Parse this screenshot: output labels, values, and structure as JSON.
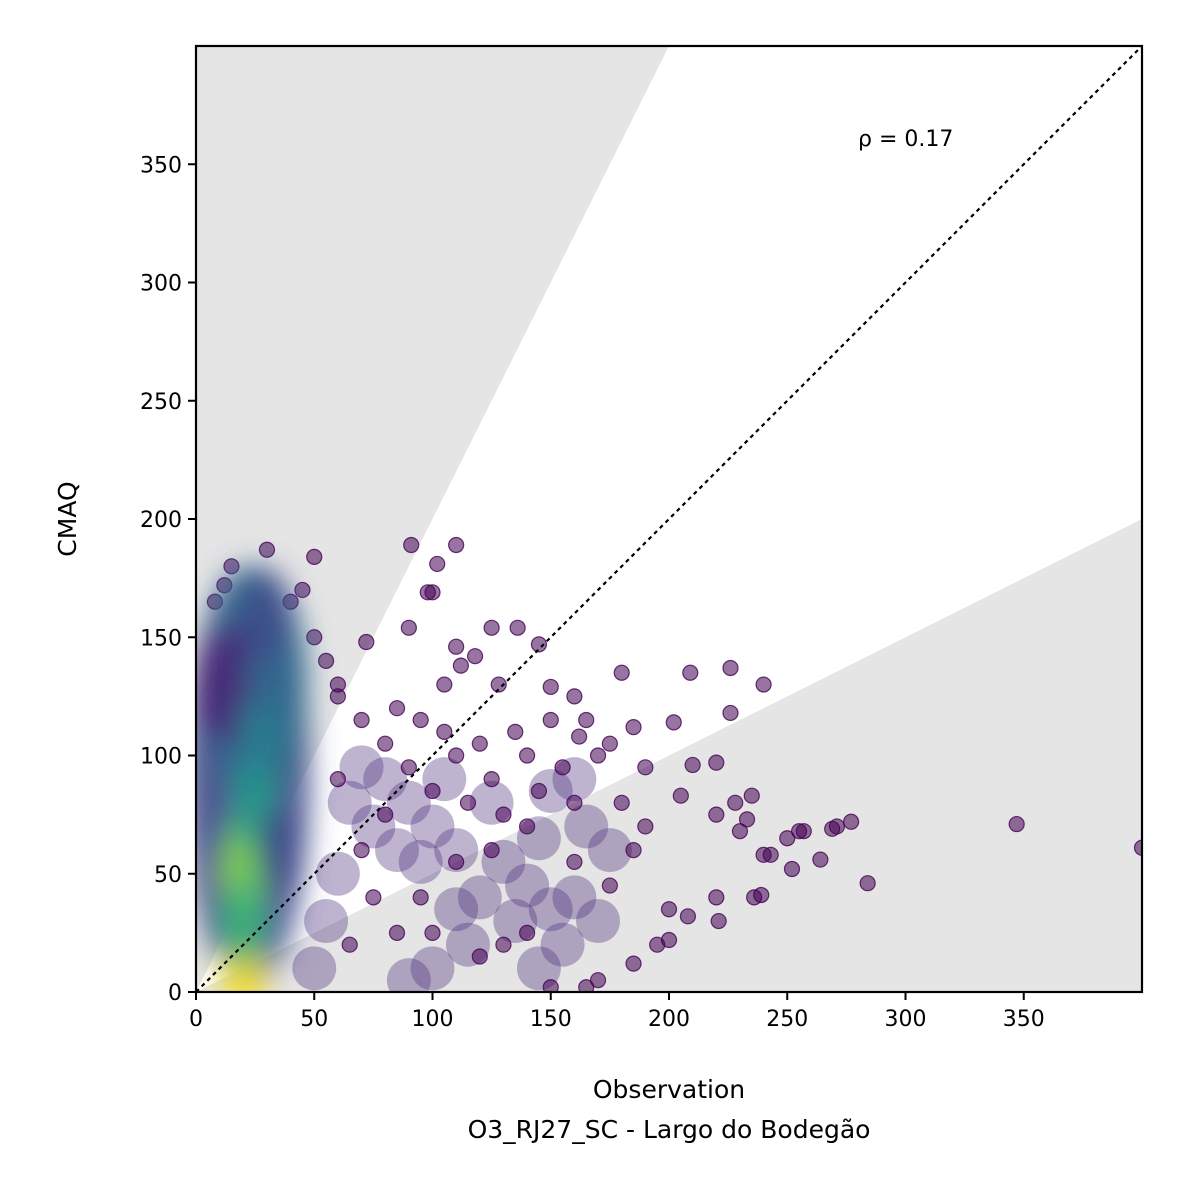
{
  "chart_data": {
    "type": "scatter",
    "xlabel": "Observation",
    "subtitle": "O3_RJ27_SC - Largo do Bodegão",
    "ylabel": "CMAQ",
    "annotation": "ρ = 0.17",
    "xlim": [
      0,
      400
    ],
    "ylim": [
      0,
      400
    ],
    "xticks": [
      0,
      50,
      100,
      150,
      200,
      250,
      300,
      350
    ],
    "yticks": [
      0,
      50,
      100,
      150,
      200,
      250,
      300,
      350
    ],
    "reference_line": {
      "style": "dotted",
      "from": [
        0,
        0
      ],
      "to": [
        400,
        400
      ]
    },
    "shaded_regions": [
      {
        "polygon": [
          [
            0,
            0
          ],
          [
            200,
            400
          ],
          [
            0,
            400
          ]
        ],
        "color": "#e5e5e5"
      },
      {
        "polygon": [
          [
            0,
            0
          ],
          [
            400,
            200
          ],
          [
            400,
            0
          ]
        ],
        "color": "#e5e5e5"
      }
    ],
    "density_core": [
      {
        "x": 20,
        "y": 5,
        "color": "#fde725"
      },
      {
        "x": 20,
        "y": 50,
        "color": "#b5de2b"
      },
      {
        "x": 22,
        "y": 60,
        "color": "#6ece58"
      },
      {
        "x": 20,
        "y": 30,
        "color": "#35b779"
      },
      {
        "x": 25,
        "y": 80,
        "color": "#1f9e89"
      },
      {
        "x": 27,
        "y": 110,
        "color": "#26828e"
      },
      {
        "x": 30,
        "y": 135,
        "color": "#31688e"
      },
      {
        "x": 30,
        "y": 160,
        "color": "#3e4989"
      },
      {
        "x": 35,
        "y": 60,
        "color": "#3e4989"
      },
      {
        "x": 10,
        "y": 130,
        "color": "#482878"
      }
    ],
    "outliers": [
      {
        "x": 91,
        "y": 189
      },
      {
        "x": 110,
        "y": 189
      },
      {
        "x": 102,
        "y": 181
      },
      {
        "x": 30,
        "y": 187
      },
      {
        "x": 50,
        "y": 184
      },
      {
        "x": 98,
        "y": 169
      },
      {
        "x": 100,
        "y": 169
      },
      {
        "x": 90,
        "y": 154
      },
      {
        "x": 125,
        "y": 154
      },
      {
        "x": 136,
        "y": 154
      },
      {
        "x": 145,
        "y": 147
      },
      {
        "x": 72,
        "y": 148
      },
      {
        "x": 110,
        "y": 146
      },
      {
        "x": 118,
        "y": 142
      },
      {
        "x": 105,
        "y": 130
      },
      {
        "x": 112,
        "y": 138
      },
      {
        "x": 128,
        "y": 130
      },
      {
        "x": 150,
        "y": 129
      },
      {
        "x": 160,
        "y": 125
      },
      {
        "x": 180,
        "y": 135
      },
      {
        "x": 209,
        "y": 135
      },
      {
        "x": 226,
        "y": 137
      },
      {
        "x": 240,
        "y": 130
      },
      {
        "x": 226,
        "y": 118
      },
      {
        "x": 202,
        "y": 114
      },
      {
        "x": 185,
        "y": 112
      },
      {
        "x": 162,
        "y": 108
      },
      {
        "x": 135,
        "y": 110
      },
      {
        "x": 110,
        "y": 100
      },
      {
        "x": 125,
        "y": 90
      },
      {
        "x": 155,
        "y": 95
      },
      {
        "x": 170,
        "y": 100
      },
      {
        "x": 190,
        "y": 95
      },
      {
        "x": 210,
        "y": 96
      },
      {
        "x": 220,
        "y": 97
      },
      {
        "x": 205,
        "y": 83
      },
      {
        "x": 228,
        "y": 80
      },
      {
        "x": 235,
        "y": 83
      },
      {
        "x": 220,
        "y": 75
      },
      {
        "x": 230,
        "y": 68
      },
      {
        "x": 233,
        "y": 73
      },
      {
        "x": 240,
        "y": 58
      },
      {
        "x": 243,
        "y": 58
      },
      {
        "x": 250,
        "y": 65
      },
      {
        "x": 255,
        "y": 68
      },
      {
        "x": 257,
        "y": 68
      },
      {
        "x": 252,
        "y": 52
      },
      {
        "x": 264,
        "y": 56
      },
      {
        "x": 269,
        "y": 69
      },
      {
        "x": 271,
        "y": 70
      },
      {
        "x": 277,
        "y": 72
      },
      {
        "x": 284,
        "y": 46
      },
      {
        "x": 347,
        "y": 71
      },
      {
        "x": 400,
        "y": 61
      },
      {
        "x": 236,
        "y": 40
      },
      {
        "x": 239,
        "y": 41
      },
      {
        "x": 220,
        "y": 40
      },
      {
        "x": 221,
        "y": 30
      },
      {
        "x": 200,
        "y": 35
      },
      {
        "x": 208,
        "y": 32
      },
      {
        "x": 195,
        "y": 20
      },
      {
        "x": 200,
        "y": 22
      },
      {
        "x": 185,
        "y": 12
      },
      {
        "x": 170,
        "y": 5
      },
      {
        "x": 165,
        "y": 2
      },
      {
        "x": 150,
        "y": 2
      },
      {
        "x": 130,
        "y": 20
      },
      {
        "x": 140,
        "y": 25
      },
      {
        "x": 120,
        "y": 15
      },
      {
        "x": 100,
        "y": 25
      },
      {
        "x": 95,
        "y": 40
      },
      {
        "x": 110,
        "y": 55
      },
      {
        "x": 125,
        "y": 60
      },
      {
        "x": 140,
        "y": 70
      },
      {
        "x": 160,
        "y": 55
      },
      {
        "x": 175,
        "y": 45
      },
      {
        "x": 185,
        "y": 60
      },
      {
        "x": 190,
        "y": 70
      },
      {
        "x": 180,
        "y": 80
      },
      {
        "x": 160,
        "y": 80
      },
      {
        "x": 145,
        "y": 85
      },
      {
        "x": 130,
        "y": 75
      },
      {
        "x": 115,
        "y": 80
      },
      {
        "x": 100,
        "y": 85
      },
      {
        "x": 90,
        "y": 95
      },
      {
        "x": 80,
        "y": 105
      },
      {
        "x": 70,
        "y": 115
      },
      {
        "x": 60,
        "y": 125
      },
      {
        "x": 85,
        "y": 120
      },
      {
        "x": 95,
        "y": 115
      },
      {
        "x": 105,
        "y": 110
      },
      {
        "x": 120,
        "y": 105
      },
      {
        "x": 140,
        "y": 100
      },
      {
        "x": 150,
        "y": 115
      },
      {
        "x": 165,
        "y": 115
      },
      {
        "x": 175,
        "y": 105
      },
      {
        "x": 70,
        "y": 60
      },
      {
        "x": 80,
        "y": 75
      },
      {
        "x": 75,
        "y": 40
      },
      {
        "x": 85,
        "y": 25
      },
      {
        "x": 65,
        "y": 20
      },
      {
        "x": 60,
        "y": 90
      },
      {
        "x": 55,
        "y": 140
      },
      {
        "x": 60,
        "y": 130
      },
      {
        "x": 50,
        "y": 150
      },
      {
        "x": 45,
        "y": 170
      },
      {
        "x": 15,
        "y": 180
      },
      {
        "x": 12,
        "y": 172
      },
      {
        "x": 8,
        "y": 165
      },
      {
        "x": 40,
        "y": 165
      }
    ],
    "density_cloud": [
      {
        "x": 100,
        "y": 70
      },
      {
        "x": 110,
        "y": 60
      },
      {
        "x": 120,
        "y": 40
      },
      {
        "x": 130,
        "y": 55
      },
      {
        "x": 140,
        "y": 45
      },
      {
        "x": 150,
        "y": 35
      },
      {
        "x": 160,
        "y": 40
      },
      {
        "x": 170,
        "y": 30
      },
      {
        "x": 155,
        "y": 20
      },
      {
        "x": 145,
        "y": 10
      },
      {
        "x": 135,
        "y": 30
      },
      {
        "x": 115,
        "y": 20
      },
      {
        "x": 95,
        "y": 55
      },
      {
        "x": 85,
        "y": 60
      },
      {
        "x": 75,
        "y": 70
      },
      {
        "x": 65,
        "y": 80
      },
      {
        "x": 70,
        "y": 95
      },
      {
        "x": 80,
        "y": 90
      },
      {
        "x": 90,
        "y": 80
      },
      {
        "x": 105,
        "y": 90
      },
      {
        "x": 125,
        "y": 80
      },
      {
        "x": 145,
        "y": 65
      },
      {
        "x": 165,
        "y": 70
      },
      {
        "x": 175,
        "y": 60
      },
      {
        "x": 160,
        "y": 90
      },
      {
        "x": 150,
        "y": 85
      },
      {
        "x": 110,
        "y": 35
      },
      {
        "x": 100,
        "y": 10
      },
      {
        "x": 90,
        "y": 5
      },
      {
        "x": 60,
        "y": 50
      },
      {
        "x": 55,
        "y": 30
      },
      {
        "x": 50,
        "y": 10
      }
    ],
    "point_color": "#440154",
    "point_opacity": 0.55
  }
}
